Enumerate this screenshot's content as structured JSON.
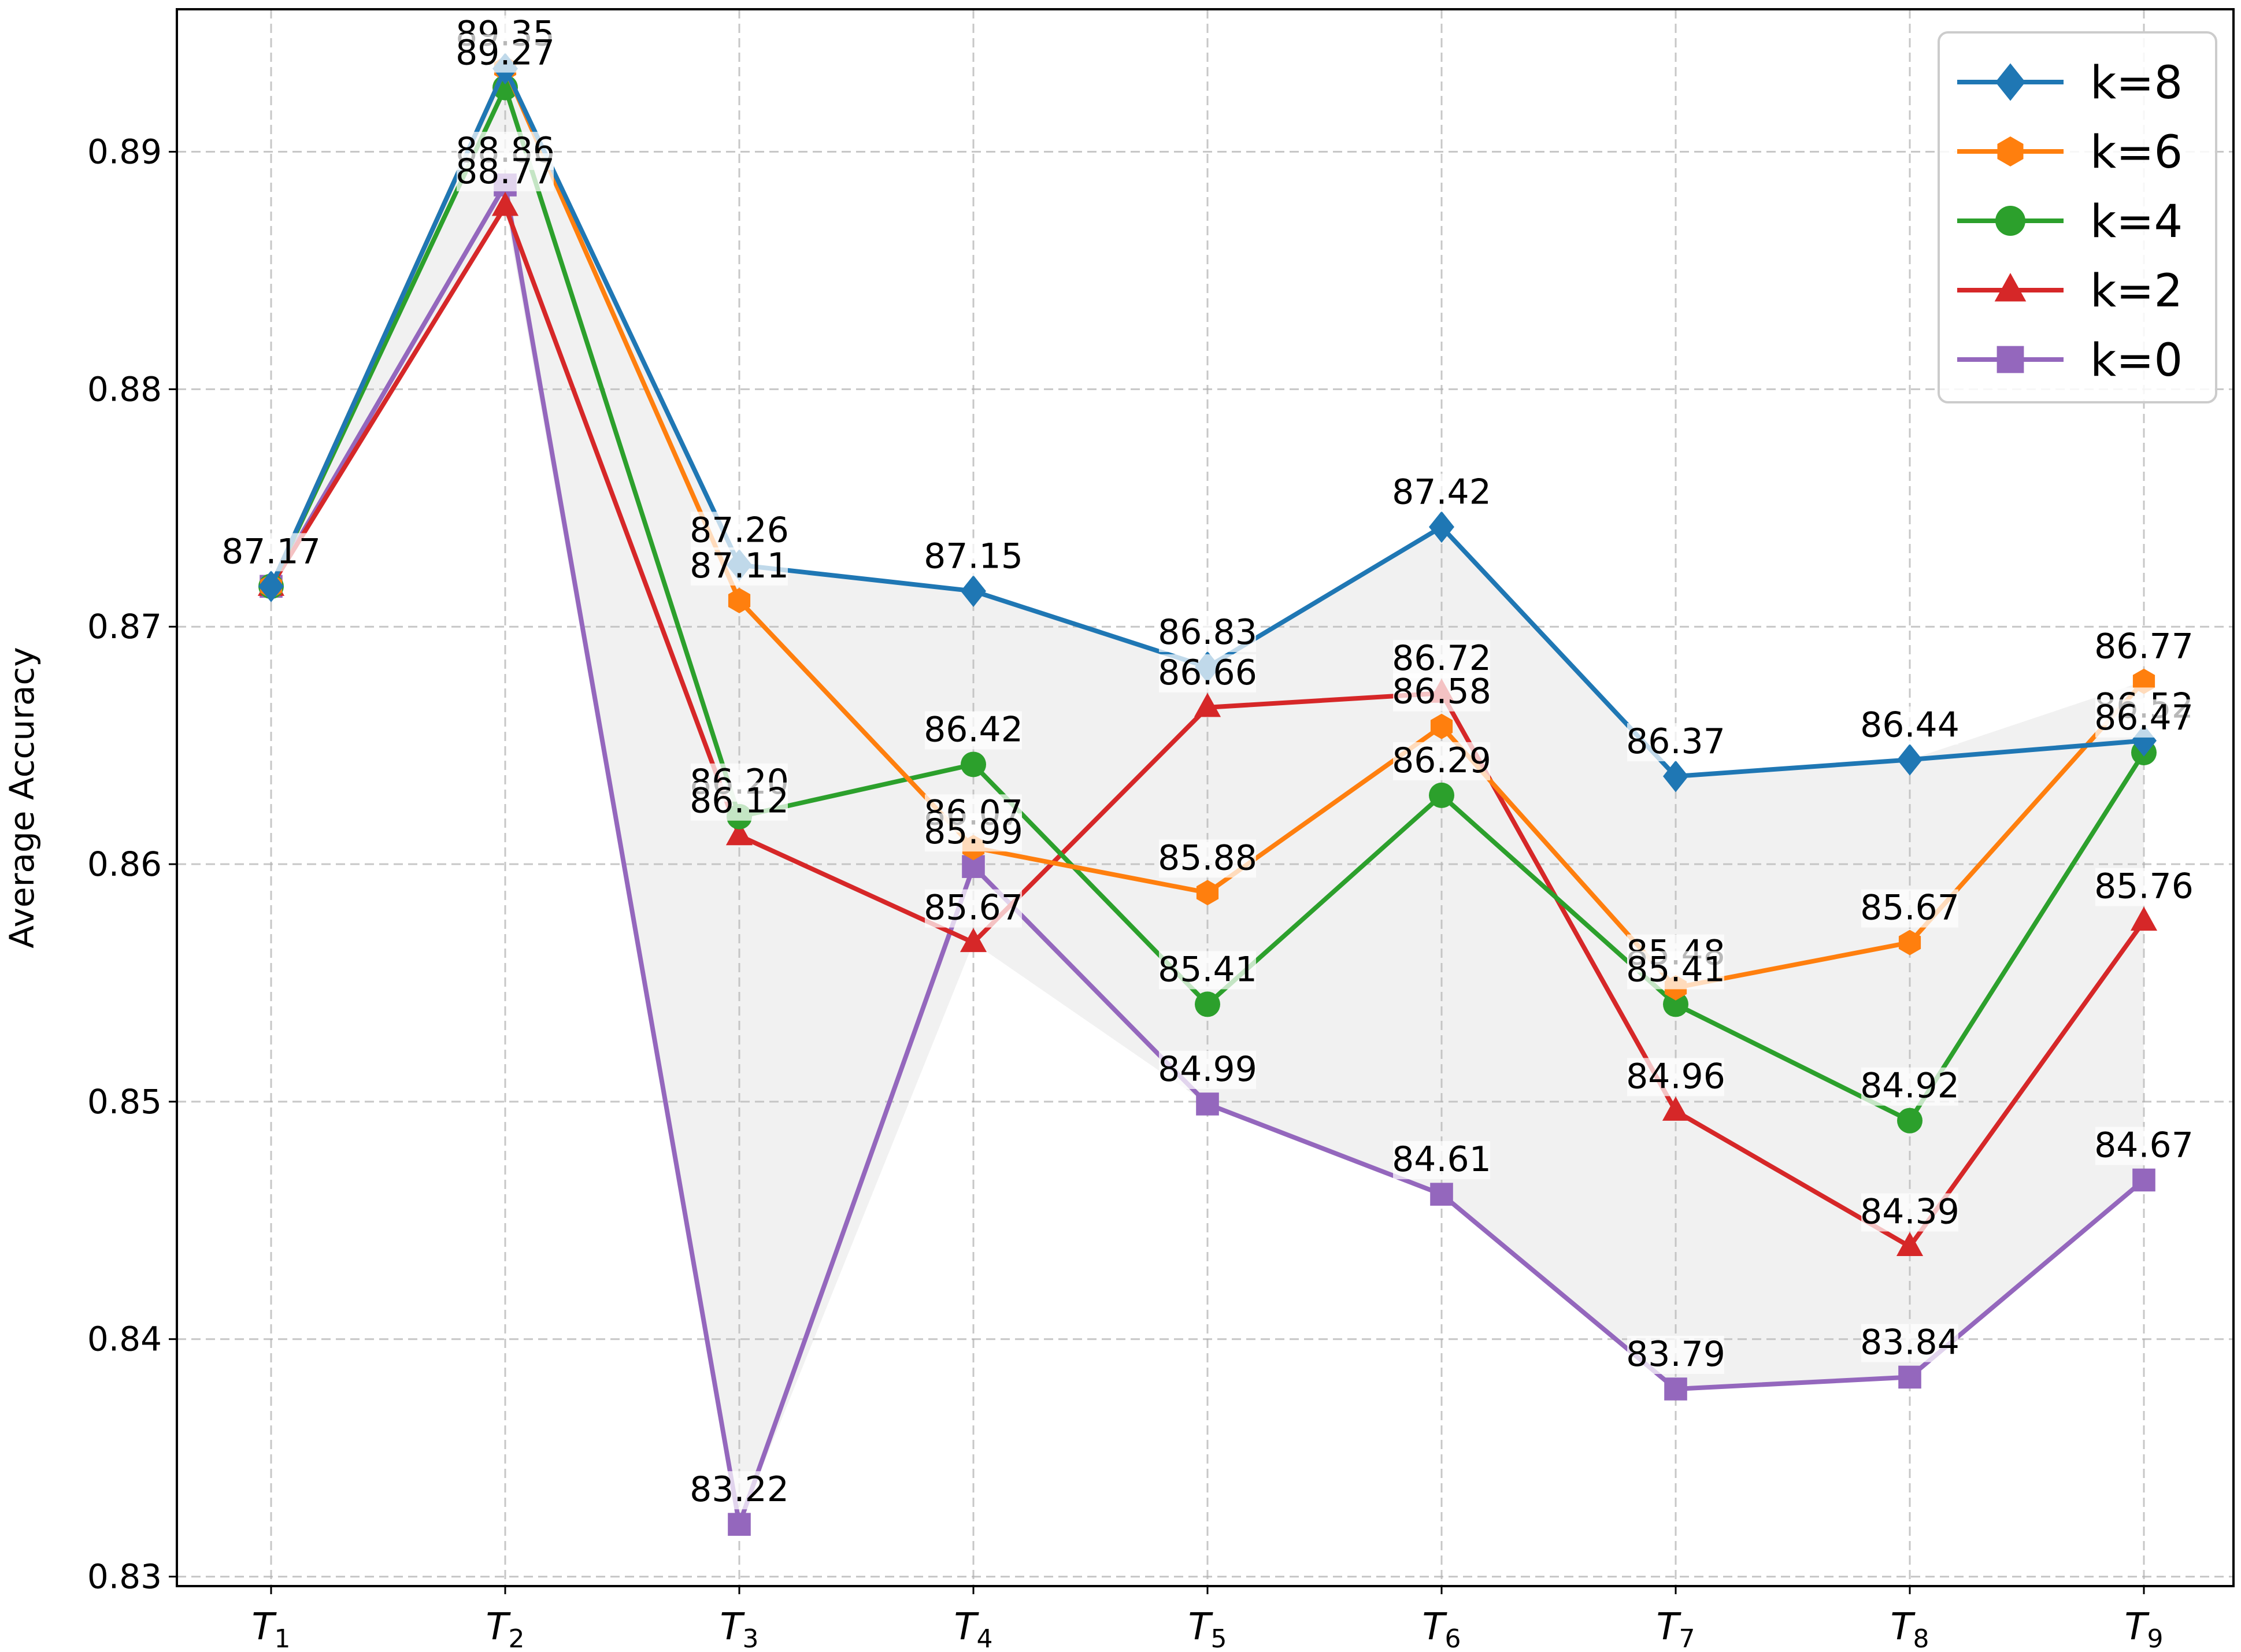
{
  "chart_data": {
    "type": "line",
    "title": "",
    "xlabel": "",
    "ylabel": "Average Accuracy",
    "x_categories": [
      "T1",
      "T2",
      "T3",
      "T4",
      "T5",
      "T6",
      "T7",
      "T8",
      "T9"
    ],
    "x_tick_labels": [
      {
        "main": "T",
        "sub": "1"
      },
      {
        "main": "T",
        "sub": "2"
      },
      {
        "main": "T",
        "sub": "3"
      },
      {
        "main": "T",
        "sub": "4"
      },
      {
        "main": "T",
        "sub": "5"
      },
      {
        "main": "T",
        "sub": "6"
      },
      {
        "main": "T",
        "sub": "7"
      },
      {
        "main": "T",
        "sub": "8"
      },
      {
        "main": "T",
        "sub": "9"
      }
    ],
    "y_ticks": [
      "0.83",
      "0.84",
      "0.85",
      "0.86",
      "0.87",
      "0.88",
      "0.89"
    ],
    "ylim": [
      0.8296,
      0.896
    ],
    "grid": true,
    "legend_position": "top-right",
    "shaded_region": "between max and min series",
    "series": [
      {
        "name": "k=8",
        "color": "#1f77b4",
        "marker": "diamond",
        "values": [
          87.17,
          89.35,
          87.26,
          87.15,
          86.83,
          87.42,
          86.37,
          86.44,
          86.52
        ]
      },
      {
        "name": "k=6",
        "color": "#ff7f0e",
        "marker": "hexagon",
        "values": [
          87.17,
          89.35,
          87.11,
          86.07,
          85.88,
          86.58,
          85.48,
          85.67,
          86.77
        ]
      },
      {
        "name": "k=4",
        "color": "#2ca02c",
        "marker": "circle",
        "values": [
          87.17,
          89.27,
          86.2,
          86.42,
          85.41,
          86.29,
          85.41,
          84.92,
          86.47
        ]
      },
      {
        "name": "k=2",
        "color": "#d62728",
        "marker": "triangle",
        "values": [
          87.17,
          88.77,
          86.12,
          85.67,
          86.66,
          86.72,
          84.96,
          84.39,
          85.76
        ]
      },
      {
        "name": "k=0",
        "color": "#9467bd",
        "marker": "square",
        "values": [
          87.17,
          88.86,
          83.22,
          85.99,
          84.99,
          84.61,
          83.79,
          83.84,
          84.67
        ]
      }
    ],
    "data_labels": [
      {
        "x": 0,
        "y": 87.17,
        "text": "87.17"
      },
      {
        "x": 1,
        "y": 89.35,
        "text": "89.35"
      },
      {
        "x": 1,
        "y": 89.27,
        "text": "89.27"
      },
      {
        "x": 1,
        "y": 88.86,
        "text": "88.86"
      },
      {
        "x": 1,
        "y": 88.77,
        "text": "88.77"
      },
      {
        "x": 2,
        "y": 87.26,
        "text": "87.26"
      },
      {
        "x": 2,
        "y": 87.11,
        "text": "87.11"
      },
      {
        "x": 2,
        "y": 86.2,
        "text": "86.20"
      },
      {
        "x": 2,
        "y": 86.12,
        "text": "86.12"
      },
      {
        "x": 2,
        "y": 83.22,
        "text": "83.22"
      },
      {
        "x": 3,
        "y": 87.15,
        "text": "87.15"
      },
      {
        "x": 3,
        "y": 86.42,
        "text": "86.42"
      },
      {
        "x": 3,
        "y": 86.07,
        "text": "86.07"
      },
      {
        "x": 3,
        "y": 85.99,
        "text": "85.99"
      },
      {
        "x": 3,
        "y": 85.67,
        "text": "85.67"
      },
      {
        "x": 4,
        "y": 86.83,
        "text": "86.83"
      },
      {
        "x": 4,
        "y": 86.66,
        "text": "86.66"
      },
      {
        "x": 4,
        "y": 85.88,
        "text": "85.88"
      },
      {
        "x": 4,
        "y": 85.41,
        "text": "85.41"
      },
      {
        "x": 4,
        "y": 84.99,
        "text": "84.99"
      },
      {
        "x": 5,
        "y": 87.42,
        "text": "87.42"
      },
      {
        "x": 5,
        "y": 86.72,
        "text": "86.72"
      },
      {
        "x": 5,
        "y": 86.58,
        "text": "86.58"
      },
      {
        "x": 5,
        "y": 86.29,
        "text": "86.29"
      },
      {
        "x": 5,
        "y": 84.61,
        "text": "84.61"
      },
      {
        "x": 6,
        "y": 86.37,
        "text": "86.37"
      },
      {
        "x": 6,
        "y": 85.48,
        "text": "85.48"
      },
      {
        "x": 6,
        "y": 85.41,
        "text": "85.41"
      },
      {
        "x": 6,
        "y": 84.96,
        "text": "84.96"
      },
      {
        "x": 6,
        "y": 83.79,
        "text": "83.79"
      },
      {
        "x": 7,
        "y": 86.44,
        "text": "86.44"
      },
      {
        "x": 7,
        "y": 85.67,
        "text": "85.67"
      },
      {
        "x": 7,
        "y": 84.92,
        "text": "84.92"
      },
      {
        "x": 7,
        "y": 84.39,
        "text": "84.39"
      },
      {
        "x": 7,
        "y": 83.84,
        "text": "83.84"
      },
      {
        "x": 8,
        "y": 86.77,
        "text": "86.77"
      },
      {
        "x": 8,
        "y": 86.52,
        "text": "86.52"
      },
      {
        "x": 8,
        "y": 86.47,
        "text": "86.47"
      },
      {
        "x": 8,
        "y": 85.76,
        "text": "85.76"
      },
      {
        "x": 8,
        "y": 84.67,
        "text": "84.67"
      }
    ]
  }
}
